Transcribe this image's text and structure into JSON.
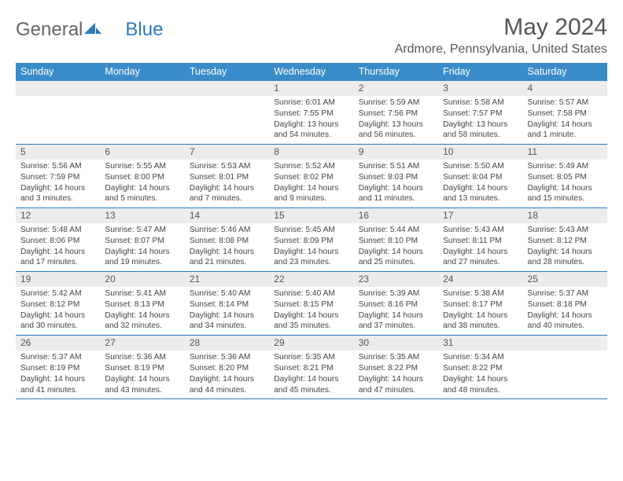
{
  "colors": {
    "header_bg": "#3a8bc9",
    "header_text": "#ffffff",
    "daynum_bg": "#ececec",
    "border": "#2b7bbd",
    "body_text": "#444444",
    "title_text": "#555555"
  },
  "logo": {
    "part1": "General",
    "part2": "Blue"
  },
  "title": "May 2024",
  "location": "Ardmore, Pennsylvania, United States",
  "day_names": [
    "Sunday",
    "Monday",
    "Tuesday",
    "Wednesday",
    "Thursday",
    "Friday",
    "Saturday"
  ],
  "weeks": [
    [
      null,
      null,
      null,
      {
        "n": "1",
        "sr": "Sunrise: 6:01 AM",
        "ss": "Sunset: 7:55 PM",
        "dl": "Daylight: 13 hours and 54 minutes."
      },
      {
        "n": "2",
        "sr": "Sunrise: 5:59 AM",
        "ss": "Sunset: 7:56 PM",
        "dl": "Daylight: 13 hours and 56 minutes."
      },
      {
        "n": "3",
        "sr": "Sunrise: 5:58 AM",
        "ss": "Sunset: 7:57 PM",
        "dl": "Daylight: 13 hours and 58 minutes."
      },
      {
        "n": "4",
        "sr": "Sunrise: 5:57 AM",
        "ss": "Sunset: 7:58 PM",
        "dl": "Daylight: 14 hours and 1 minute."
      }
    ],
    [
      {
        "n": "5",
        "sr": "Sunrise: 5:56 AM",
        "ss": "Sunset: 7:59 PM",
        "dl": "Daylight: 14 hours and 3 minutes."
      },
      {
        "n": "6",
        "sr": "Sunrise: 5:55 AM",
        "ss": "Sunset: 8:00 PM",
        "dl": "Daylight: 14 hours and 5 minutes."
      },
      {
        "n": "7",
        "sr": "Sunrise: 5:53 AM",
        "ss": "Sunset: 8:01 PM",
        "dl": "Daylight: 14 hours and 7 minutes."
      },
      {
        "n": "8",
        "sr": "Sunrise: 5:52 AM",
        "ss": "Sunset: 8:02 PM",
        "dl": "Daylight: 14 hours and 9 minutes."
      },
      {
        "n": "9",
        "sr": "Sunrise: 5:51 AM",
        "ss": "Sunset: 8:03 PM",
        "dl": "Daylight: 14 hours and 11 minutes."
      },
      {
        "n": "10",
        "sr": "Sunrise: 5:50 AM",
        "ss": "Sunset: 8:04 PM",
        "dl": "Daylight: 14 hours and 13 minutes."
      },
      {
        "n": "11",
        "sr": "Sunrise: 5:49 AM",
        "ss": "Sunset: 8:05 PM",
        "dl": "Daylight: 14 hours and 15 minutes."
      }
    ],
    [
      {
        "n": "12",
        "sr": "Sunrise: 5:48 AM",
        "ss": "Sunset: 8:06 PM",
        "dl": "Daylight: 14 hours and 17 minutes."
      },
      {
        "n": "13",
        "sr": "Sunrise: 5:47 AM",
        "ss": "Sunset: 8:07 PM",
        "dl": "Daylight: 14 hours and 19 minutes."
      },
      {
        "n": "14",
        "sr": "Sunrise: 5:46 AM",
        "ss": "Sunset: 8:08 PM",
        "dl": "Daylight: 14 hours and 21 minutes."
      },
      {
        "n": "15",
        "sr": "Sunrise: 5:45 AM",
        "ss": "Sunset: 8:09 PM",
        "dl": "Daylight: 14 hours and 23 minutes."
      },
      {
        "n": "16",
        "sr": "Sunrise: 5:44 AM",
        "ss": "Sunset: 8:10 PM",
        "dl": "Daylight: 14 hours and 25 minutes."
      },
      {
        "n": "17",
        "sr": "Sunrise: 5:43 AM",
        "ss": "Sunset: 8:11 PM",
        "dl": "Daylight: 14 hours and 27 minutes."
      },
      {
        "n": "18",
        "sr": "Sunrise: 5:43 AM",
        "ss": "Sunset: 8:12 PM",
        "dl": "Daylight: 14 hours and 28 minutes."
      }
    ],
    [
      {
        "n": "19",
        "sr": "Sunrise: 5:42 AM",
        "ss": "Sunset: 8:12 PM",
        "dl": "Daylight: 14 hours and 30 minutes."
      },
      {
        "n": "20",
        "sr": "Sunrise: 5:41 AM",
        "ss": "Sunset: 8:13 PM",
        "dl": "Daylight: 14 hours and 32 minutes."
      },
      {
        "n": "21",
        "sr": "Sunrise: 5:40 AM",
        "ss": "Sunset: 8:14 PM",
        "dl": "Daylight: 14 hours and 34 minutes."
      },
      {
        "n": "22",
        "sr": "Sunrise: 5:40 AM",
        "ss": "Sunset: 8:15 PM",
        "dl": "Daylight: 14 hours and 35 minutes."
      },
      {
        "n": "23",
        "sr": "Sunrise: 5:39 AM",
        "ss": "Sunset: 8:16 PM",
        "dl": "Daylight: 14 hours and 37 minutes."
      },
      {
        "n": "24",
        "sr": "Sunrise: 5:38 AM",
        "ss": "Sunset: 8:17 PM",
        "dl": "Daylight: 14 hours and 38 minutes."
      },
      {
        "n": "25",
        "sr": "Sunrise: 5:37 AM",
        "ss": "Sunset: 8:18 PM",
        "dl": "Daylight: 14 hours and 40 minutes."
      }
    ],
    [
      {
        "n": "26",
        "sr": "Sunrise: 5:37 AM",
        "ss": "Sunset: 8:19 PM",
        "dl": "Daylight: 14 hours and 41 minutes."
      },
      {
        "n": "27",
        "sr": "Sunrise: 5:36 AM",
        "ss": "Sunset: 8:19 PM",
        "dl": "Daylight: 14 hours and 43 minutes."
      },
      {
        "n": "28",
        "sr": "Sunrise: 5:36 AM",
        "ss": "Sunset: 8:20 PM",
        "dl": "Daylight: 14 hours and 44 minutes."
      },
      {
        "n": "29",
        "sr": "Sunrise: 5:35 AM",
        "ss": "Sunset: 8:21 PM",
        "dl": "Daylight: 14 hours and 45 minutes."
      },
      {
        "n": "30",
        "sr": "Sunrise: 5:35 AM",
        "ss": "Sunset: 8:22 PM",
        "dl": "Daylight: 14 hours and 47 minutes."
      },
      {
        "n": "31",
        "sr": "Sunrise: 5:34 AM",
        "ss": "Sunset: 8:22 PM",
        "dl": "Daylight: 14 hours and 48 minutes."
      },
      null
    ]
  ]
}
